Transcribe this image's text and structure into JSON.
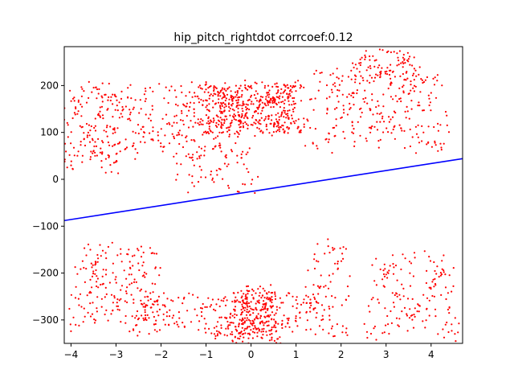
{
  "chart_data": {
    "type": "scatter",
    "title": "hip_pitch_rightdot corrcoef:0.12",
    "xlabel": "",
    "ylabel": "",
    "xlim": [
      -4.15,
      4.7
    ],
    "ylim": [
      -350,
      283
    ],
    "xticks": [
      {
        "value": -4,
        "label": "−4"
      },
      {
        "value": -3,
        "label": "−3"
      },
      {
        "value": -2,
        "label": "−2"
      },
      {
        "value": -1,
        "label": "−1"
      },
      {
        "value": 0,
        "label": "0"
      },
      {
        "value": 1,
        "label": "1"
      },
      {
        "value": 2,
        "label": "2"
      },
      {
        "value": 3,
        "label": "3"
      },
      {
        "value": 4,
        "label": "4"
      }
    ],
    "yticks": [
      {
        "value": -300,
        "label": "−300"
      },
      {
        "value": -200,
        "label": "−200"
      },
      {
        "value": -100,
        "label": "−100"
      },
      {
        "value": 0,
        "label": "0"
      },
      {
        "value": 100,
        "label": "100"
      },
      {
        "value": 200,
        "label": "200"
      }
    ],
    "grid": false,
    "scatter_color": "#ff0000",
    "fit_line": {
      "color": "#0000ff",
      "x": [
        -4.15,
        4.7
      ],
      "y": [
        -88,
        44
      ]
    },
    "scatter_clusters": [
      {
        "cx": 0.0,
        "cy": 150,
        "rx": 1.1,
        "ry": 55,
        "n": 520
      },
      {
        "cx": -2.0,
        "cy": 120,
        "rx": 1.6,
        "ry": 80,
        "n": 260
      },
      {
        "cx": 2.8,
        "cy": 150,
        "rx": 1.5,
        "ry": 90,
        "n": 260
      },
      {
        "cx": -3.6,
        "cy": 110,
        "rx": 0.6,
        "ry": 90,
        "n": 120
      },
      {
        "cx": 3.0,
        "cy": 240,
        "rx": 0.8,
        "ry": 35,
        "n": 90
      },
      {
        "cx": 0.1,
        "cy": -290,
        "rx": 0.5,
        "ry": 60,
        "n": 220
      },
      {
        "cx": 0.6,
        "cy": -290,
        "rx": 1.4,
        "ry": 45,
        "n": 180
      },
      {
        "cx": -3.0,
        "cy": -230,
        "rx": 1.0,
        "ry": 90,
        "n": 200
      },
      {
        "cx": 3.6,
        "cy": -250,
        "rx": 1.0,
        "ry": 90,
        "n": 160
      },
      {
        "cx": -1.5,
        "cy": -290,
        "rx": 1.3,
        "ry": 45,
        "n": 120
      },
      {
        "cx": 1.7,
        "cy": -200,
        "rx": 0.5,
        "ry": 70,
        "n": 50
      },
      {
        "cx": -0.8,
        "cy": 20,
        "rx": 0.9,
        "ry": 50,
        "n": 60
      }
    ]
  }
}
